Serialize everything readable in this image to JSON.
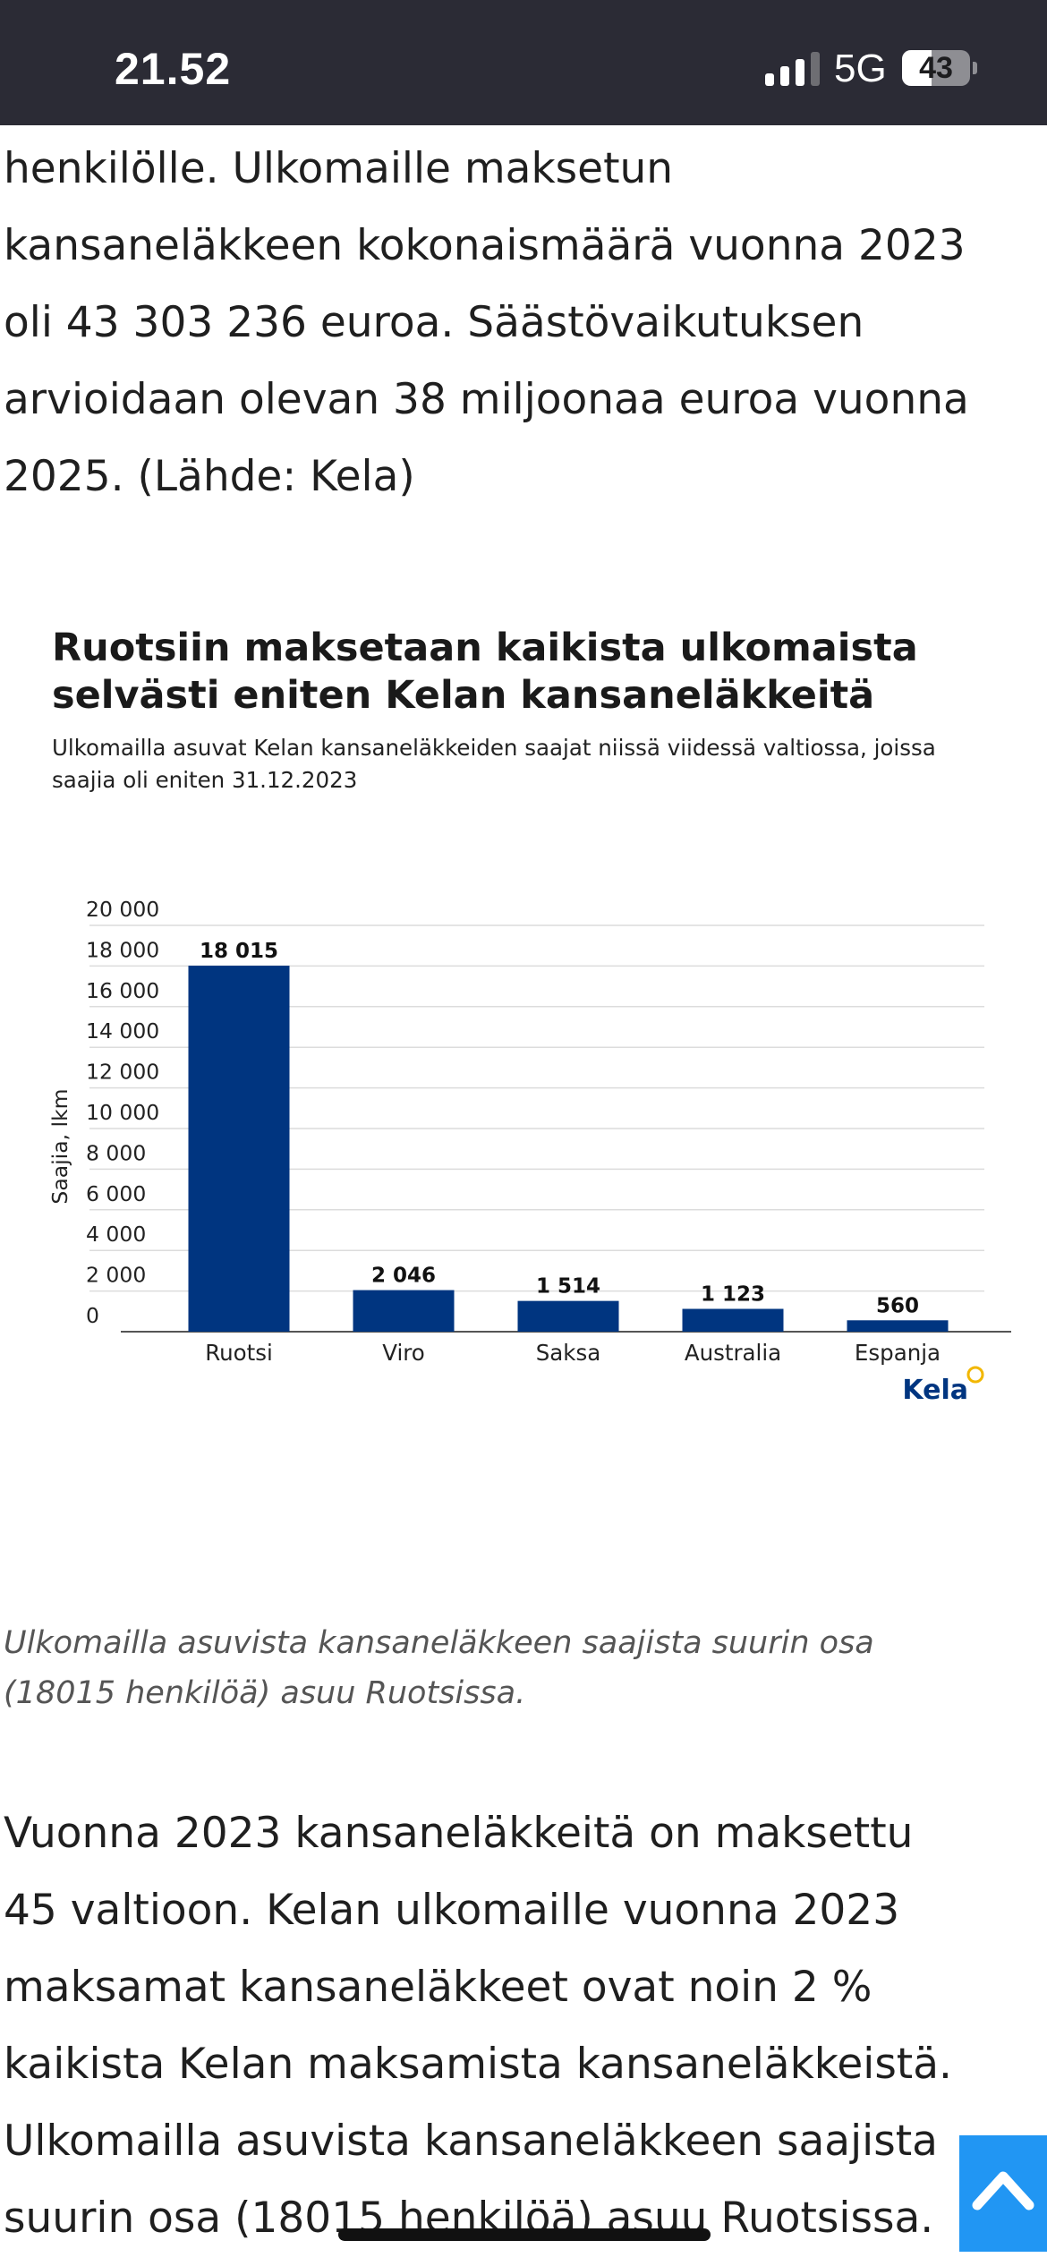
{
  "status_bar": {
    "time": "21.52",
    "network": "5G",
    "battery": "43",
    "battery_level": 0.43
  },
  "article": {
    "paragraph_1": [
      "henkilölle. Ulkomaille maksetun",
      "kansaneläkkeen kokonaismäärä vuonna 2023",
      "oli 43 303 236 euroa. Säästövaikutuksen",
      "arvioidaan olevan 38 miljoonaa euroa vuonna",
      "2025. (Lähde: Kela)"
    ],
    "caption": [
      "Ulkomailla asuvista kansaneläkkeen saajista suurin osa",
      "(18015 henkilöä) asuu Ruotsissa."
    ],
    "paragraph_2": [
      "Vuonna 2023 kansaneläkkeitä on maksettu",
      "45 valtioon. Kelan ulkomaille vuonna 2023",
      "maksamat kansaneläkkeet ovat noin 2 %",
      "kaikista Kelan maksamista kansaneläkkeistä.",
      "Ulkomailla asuvista kansaneläkkeen saajista",
      "suurin osa (18015 henkilöä) asuu Ruotsissa."
    ]
  },
  "chart_data": {
    "type": "bar",
    "title_lines": [
      "Ruotsiin maksetaan kaikista ulkomaista",
      "selvästi eniten Kelan kansaneläkkeitä"
    ],
    "subtitle_lines": [
      "Ulkomailla asuvat Kelan kansaneläkkeiden saajat niissä viidessä valtiossa, joissa",
      "saajia oli eniten 31.12.2023"
    ],
    "categories": [
      "Ruotsi",
      "Viro",
      "Saksa",
      "Australia",
      "Espanja"
    ],
    "values": [
      18015,
      2046,
      1514,
      1123,
      560
    ],
    "value_labels": [
      "18 015",
      "2 046",
      "1 514",
      "1 123",
      "560"
    ],
    "ylabel": "Saajia, lkm",
    "ylim": [
      0,
      20000
    ],
    "yticks": [
      0,
      2000,
      4000,
      6000,
      8000,
      10000,
      12000,
      14000,
      16000,
      18000,
      20000
    ],
    "ytick_labels": [
      "0",
      "2 000",
      "4 000",
      "6 000",
      "8 000",
      "10 000",
      "12 000",
      "14 000",
      "16 000",
      "18 000",
      "20 000"
    ],
    "grid": true,
    "bar_color": "#003580",
    "source_logo": "Kela"
  },
  "scroll_top": {
    "icon": "chevron-up-icon",
    "color": "#2196f3"
  }
}
